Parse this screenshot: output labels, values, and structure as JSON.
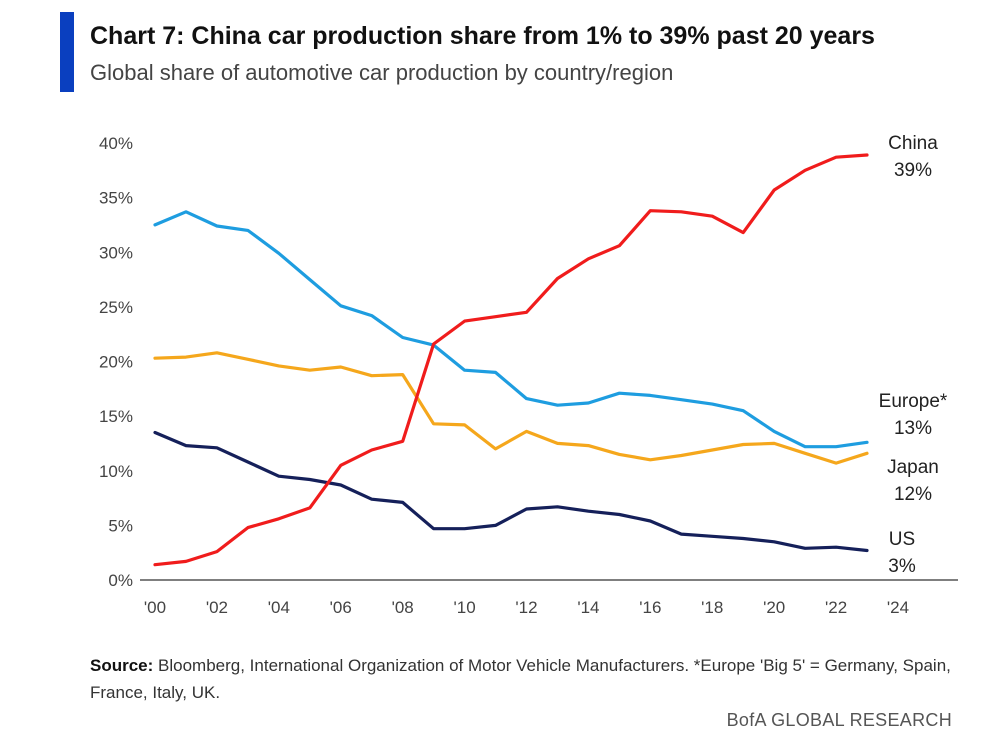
{
  "header": {
    "title": "Chart 7: China car production share from 1% to 39% past 20 years",
    "subtitle": "Global share of automotive car production by country/region"
  },
  "footer": {
    "source_label": "Source:",
    "source_text": " Bloomberg, International Organization of Motor Vehicle Manufacturers. *Europe 'Big 5' = Germany, Spain, France, Italy, UK.",
    "brand": "BofA GLOBAL RESEARCH"
  },
  "chart_data": {
    "type": "line",
    "title": "Chart 7: China car production share from 1% to 39% past 20 years",
    "subtitle": "Global share of automotive car production by country/region",
    "xlabel": "",
    "ylabel": "",
    "x": [
      2000,
      2001,
      2002,
      2003,
      2004,
      2005,
      2006,
      2007,
      2008,
      2009,
      2010,
      2011,
      2012,
      2013,
      2014,
      2015,
      2016,
      2017,
      2018,
      2019,
      2020,
      2021,
      2022,
      2023
    ],
    "xlim": [
      2000,
      2024
    ],
    "ylim": [
      0,
      40
    ],
    "x_ticks": [
      2000,
      2002,
      2004,
      2006,
      2008,
      2010,
      2012,
      2014,
      2016,
      2018,
      2020,
      2022,
      2024
    ],
    "x_tick_labels": [
      "'00",
      "'02",
      "'04",
      "'06",
      "'08",
      "'10",
      "'12",
      "'14",
      "'16",
      "'18",
      "'20",
      "'22",
      "'24"
    ],
    "y_ticks": [
      0,
      5,
      10,
      15,
      20,
      25,
      30,
      35,
      40
    ],
    "y_tick_labels": [
      "0%",
      "5%",
      "10%",
      "15%",
      "20%",
      "25%",
      "30%",
      "35%",
      "40%"
    ],
    "grid": false,
    "legend": "end-of-line labels",
    "series": [
      {
        "name": "China",
        "end_label": "39%",
        "color": "#f01c1c",
        "values": [
          1.4,
          1.7,
          2.6,
          4.8,
          5.6,
          6.6,
          10.5,
          11.9,
          12.7,
          21.6,
          23.7,
          24.1,
          24.5,
          27.6,
          29.4,
          30.6,
          33.8,
          33.7,
          33.3,
          31.8,
          35.7,
          37.5,
          38.7,
          38.9
        ]
      },
      {
        "name": "Europe*",
        "end_label": "13%",
        "color": "#1e9de0",
        "values": [
          32.5,
          33.7,
          32.4,
          32.0,
          29.9,
          27.5,
          25.1,
          24.2,
          22.2,
          21.5,
          19.2,
          19.0,
          16.6,
          16.0,
          16.2,
          17.1,
          16.9,
          16.5,
          16.1,
          15.5,
          13.6,
          12.2,
          12.2,
          12.6
        ]
      },
      {
        "name": "Japan",
        "end_label": "12%",
        "color": "#f5a71c",
        "values": [
          20.3,
          20.4,
          20.8,
          20.2,
          19.6,
          19.2,
          19.5,
          18.7,
          18.8,
          14.3,
          14.2,
          12.0,
          13.6,
          12.5,
          12.3,
          11.5,
          11.0,
          11.4,
          11.9,
          12.4,
          12.5,
          11.6,
          10.7,
          11.6
        ]
      },
      {
        "name": "US",
        "end_label": "3%",
        "color": "#15205a",
        "values": [
          13.5,
          12.3,
          12.1,
          10.8,
          9.5,
          9.2,
          8.7,
          7.4,
          7.1,
          4.7,
          4.7,
          5.0,
          6.5,
          6.7,
          6.3,
          6.0,
          5.4,
          4.2,
          4.0,
          3.8,
          3.5,
          2.9,
          3.0,
          2.7
        ]
      }
    ]
  }
}
